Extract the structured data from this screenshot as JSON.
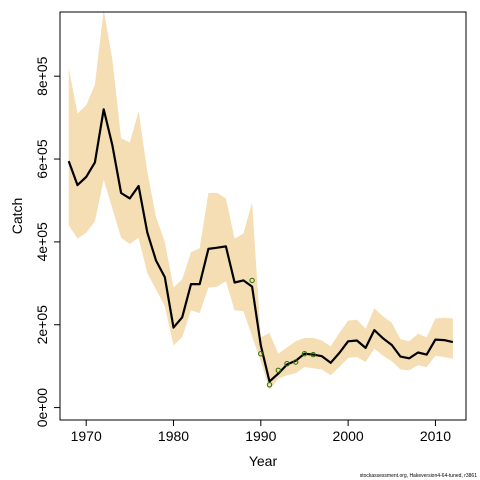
{
  "chart_data": {
    "type": "line",
    "title": "",
    "xlabel": "Year",
    "ylabel": "Catch",
    "xlim": [
      1967,
      2013.5
    ],
    "ylim": [
      -30000,
      955000
    ],
    "x_ticks": [
      1970,
      1980,
      1990,
      2000,
      2010
    ],
    "x_tick_labels": [
      "1970",
      "1980",
      "1990",
      "2000",
      "2010"
    ],
    "y_ticks": [
      0,
      200000,
      400000,
      600000,
      800000
    ],
    "y_tick_labels": [
      "0e+00",
      "2e+05",
      "4e+05",
      "6e+05",
      "8e+05"
    ],
    "grid": false,
    "colors": {
      "band": "#f5deb3",
      "line": "#000000",
      "points": "#2e6b00"
    },
    "years": [
      1968,
      1969,
      1970,
      1971,
      1972,
      1973,
      1974,
      1975,
      1976,
      1977,
      1978,
      1979,
      1980,
      1981,
      1982,
      1983,
      1984,
      1985,
      1986,
      1987,
      1988,
      1989,
      1990,
      1991,
      1992,
      1993,
      1994,
      1995,
      1996,
      1997,
      1998,
      1999,
      2000,
      2001,
      2002,
      2003,
      2004,
      2005,
      2006,
      2007,
      2008,
      2009,
      2010,
      2011,
      2012
    ],
    "series": [
      {
        "type": "line",
        "values": [
          595000,
          537000,
          557000,
          592000,
          720000,
          633000,
          518000,
          505000,
          535000,
          423000,
          355000,
          315000,
          193000,
          218000,
          298000,
          298000,
          383000,
          386000,
          389000,
          302000,
          307000,
          292000,
          150000,
          63000,
          82000,
          104000,
          113000,
          130000,
          128000,
          124000,
          108000,
          132000,
          160000,
          162000,
          144000,
          187000,
          167000,
          151000,
          123000,
          119000,
          133000,
          128000,
          164000,
          163000,
          158000
        ]
      },
      {
        "type": "band",
        "upper": [
          820000,
          710000,
          730000,
          780000,
          960000,
          840000,
          650000,
          640000,
          715000,
          570000,
          460000,
          400000,
          290000,
          310000,
          375000,
          385000,
          518000,
          518000,
          505000,
          408000,
          420000,
          495000,
          170000,
          180000,
          130000,
          145000,
          160000,
          168000,
          168000,
          162000,
          148000,
          180000,
          210000,
          212000,
          190000,
          240000,
          220000,
          205000,
          165000,
          160000,
          178000,
          170000,
          215000,
          217000,
          215000
        ],
        "lower": [
          440000,
          408000,
          422000,
          450000,
          550000,
          480000,
          410000,
          395000,
          410000,
          325000,
          285000,
          245000,
          150000,
          170000,
          235000,
          228000,
          290000,
          292000,
          305000,
          235000,
          233000,
          172000,
          112000,
          43000,
          70000,
          78000,
          83000,
          98000,
          95000,
          92000,
          78000,
          98000,
          120000,
          122000,
          110000,
          142000,
          125000,
          112000,
          92000,
          90000,
          102000,
          98000,
          125000,
          122000,
          118000
        ]
      },
      {
        "type": "scatter",
        "x": [
          1989,
          1990,
          1991,
          1992,
          1993,
          1994,
          1995,
          1996
        ],
        "y": [
          307000,
          130000,
          55000,
          90000,
          106000,
          110000,
          130000,
          128000
        ]
      }
    ]
  },
  "footnote": "stockassessment.org, Hakeversion4-64-tuned, r3861"
}
